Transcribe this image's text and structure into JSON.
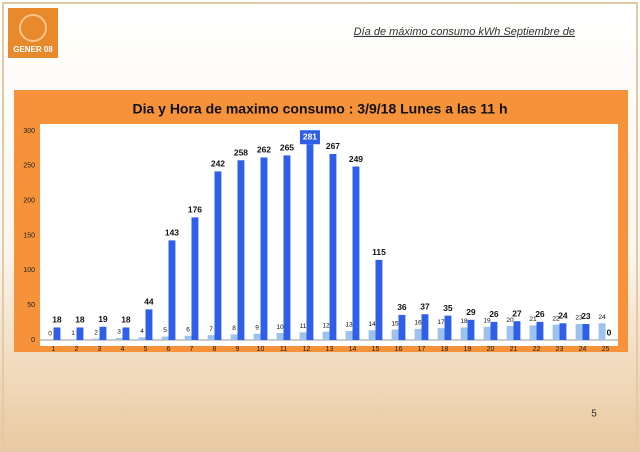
{
  "logo": "GENER 08",
  "header": "Día de máximo consumo kWh Septiembre de",
  "page_number": "5",
  "chart_data": {
    "type": "bar",
    "title": "Dia y Hora de maximo consumo : 3/9/18 Lunes a las 11 h",
    "categories": [
      "1",
      "2",
      "3",
      "4",
      "5",
      "6",
      "7",
      "8",
      "9",
      "10",
      "11",
      "12",
      "13",
      "14",
      "15",
      "16",
      "17",
      "18",
      "19",
      "20",
      "21",
      "22",
      "23",
      "24",
      "25"
    ],
    "series": [
      {
        "color": "#9cc3ee",
        "values": [
          0,
          1,
          2,
          3,
          4,
          5,
          6,
          7,
          8,
          9,
          10,
          11,
          12,
          13,
          14,
          15,
          16,
          17,
          18,
          19,
          20,
          21,
          22,
          23,
          24
        ]
      },
      {
        "color": "#2f5fe8",
        "values": [
          18,
          18,
          19,
          18,
          44,
          143,
          176,
          242,
          258,
          262,
          265,
          281,
          267,
          249,
          115,
          36,
          37,
          35,
          29,
          26,
          27,
          26,
          24,
          23,
          0
        ]
      }
    ],
    "ylim": [
      0,
      300
    ],
    "yticks": [
      0,
      50,
      100,
      150,
      200,
      250,
      300
    ],
    "grid": false
  }
}
